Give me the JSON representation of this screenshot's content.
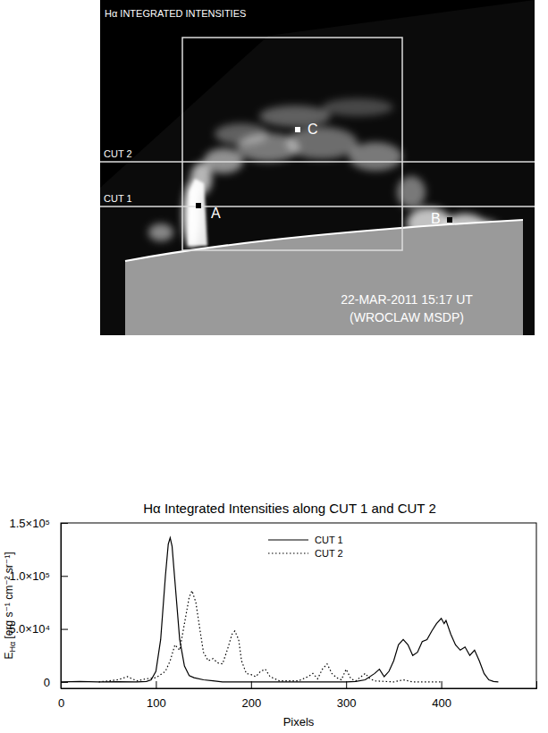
{
  "image_panel": {
    "title": "Hα INTEGRATED INTENSITIES",
    "cut_labels": [
      "CUT 2",
      "CUT 1"
    ],
    "point_labels": [
      "A",
      "B",
      "C"
    ],
    "date": "22-MAR-2011 15:17 UT",
    "source": "(WROCLAW MSDP)"
  },
  "chart_data": {
    "type": "line",
    "title": "Hα Integrated Intensities along CUT 1 and CUT 2",
    "x_label": "Pixels",
    "y_label": "EHα [erg s⁻¹ cm⁻² sr⁻¹]",
    "xlim": [
      0,
      500
    ],
    "ylim": [
      -6000,
      150000
    ],
    "xticks": [
      0,
      100,
      200,
      300,
      400
    ],
    "yticks": [
      0,
      {
        "value": 50000,
        "label": "5.0×10⁴"
      },
      {
        "value": 100000,
        "label": "1.0×10⁵"
      },
      {
        "value": 150000,
        "label": "1.5×10⁵"
      }
    ],
    "legend": "top",
    "series": [
      {
        "name": "CUT 1",
        "color": "#000000",
        "line_style": "solid",
        "x": [
          0,
          20,
          40,
          60,
          80,
          90,
          95,
          100,
          105,
          110,
          113,
          115,
          117,
          120,
          125,
          130,
          135,
          140,
          150,
          160,
          170,
          200,
          250,
          300,
          310,
          320,
          330,
          335,
          340,
          345,
          350,
          355,
          360,
          365,
          370,
          375,
          380,
          385,
          390,
          395,
          400,
          403,
          405,
          410,
          415,
          420,
          425,
          430,
          435,
          440,
          445,
          450,
          455,
          460
        ],
        "values": [
          0,
          500,
          0,
          300,
          0,
          500,
          2000,
          10000,
          40000,
          100000,
          130000,
          136000,
          128000,
          95000,
          40000,
          15000,
          6000,
          4000,
          2000,
          1000,
          0,
          0,
          0,
          0,
          500,
          2000,
          8000,
          12000,
          5000,
          10000,
          20000,
          35000,
          40000,
          35000,
          25000,
          28000,
          38000,
          40000,
          48000,
          55000,
          60000,
          55000,
          58000,
          45000,
          35000,
          30000,
          33000,
          25000,
          30000,
          20000,
          8000,
          2000,
          500,
          0
        ]
      },
      {
        "name": "CUT 2",
        "color": "#000000",
        "line_style": "dotted",
        "x": [
          40,
          60,
          70,
          80,
          90,
          100,
          110,
          115,
          120,
          125,
          130,
          135,
          138,
          142,
          147,
          150,
          155,
          160,
          165,
          170,
          175,
          180,
          183,
          187,
          190,
          195,
          200,
          205,
          210,
          215,
          220,
          230,
          250,
          260,
          265,
          270,
          275,
          280,
          285,
          290,
          295,
          300,
          305,
          310,
          320,
          325,
          330,
          340,
          350,
          360,
          370,
          400
        ],
        "values": [
          0,
          2000,
          5000,
          1000,
          3000,
          4000,
          10000,
          20000,
          35000,
          30000,
          55000,
          80000,
          86000,
          75000,
          45000,
          28000,
          20000,
          22000,
          18000,
          17000,
          30000,
          45000,
          48000,
          40000,
          20000,
          8000,
          7000,
          5000,
          10000,
          12000,
          5000,
          1000,
          1000,
          5000,
          8000,
          3000,
          12000,
          17000,
          8000,
          4000,
          2000,
          12000,
          3000,
          1000,
          8000,
          3000,
          1000,
          500,
          0,
          2000,
          0,
          0
        ]
      }
    ]
  }
}
